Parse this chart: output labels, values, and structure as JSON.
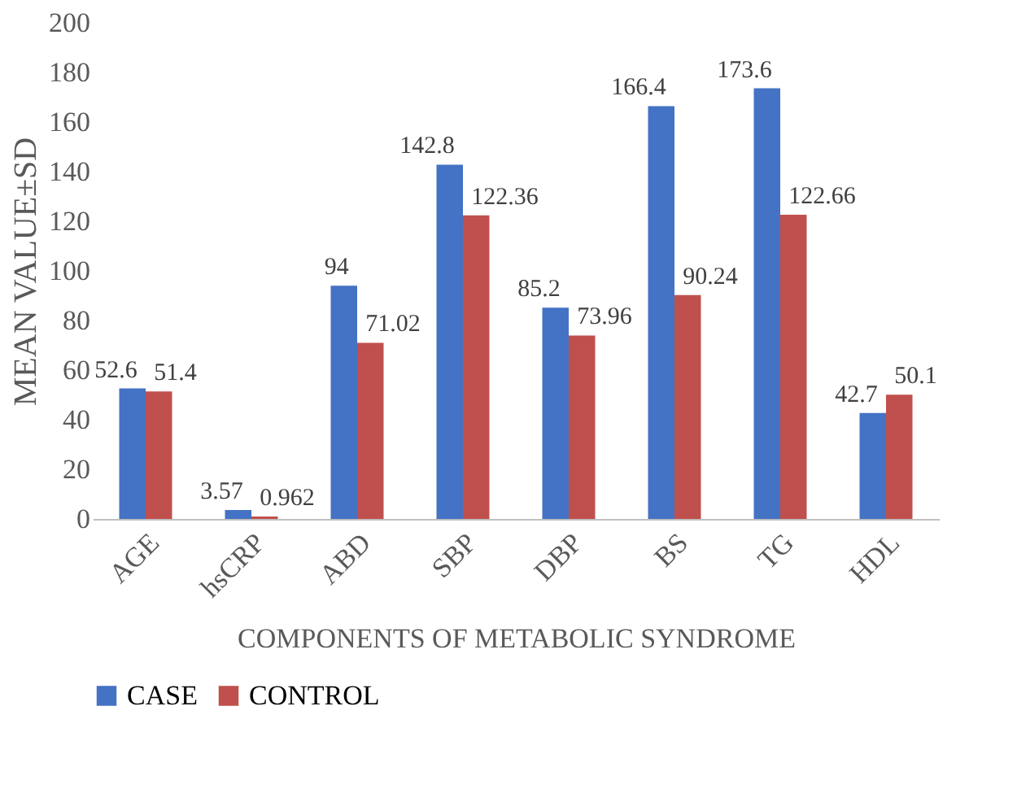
{
  "chart_data": {
    "type": "bar",
    "xlabel": "COMPONENTS OF METABOLIC SYNDROME",
    "ylabel": "MEAN VALUE±SD",
    "categories": [
      "AGE",
      "hsCRP",
      "ABD",
      "SBP",
      "DBP",
      "BS",
      "TG",
      "HDL"
    ],
    "series": [
      {
        "name": "CASE",
        "color": "#4472c4",
        "values": [
          52.6,
          3.57,
          94,
          142.8,
          85.2,
          166.4,
          173.6,
          42.7
        ]
      },
      {
        "name": "CONTROL",
        "color": "#c0504d",
        "values": [
          51.4,
          0.962,
          71.02,
          122.36,
          73.96,
          90.24,
          122.66,
          50.1
        ]
      }
    ],
    "ylim": [
      0,
      200
    ],
    "yticks": [
      0,
      20,
      40,
      60,
      80,
      100,
      120,
      140,
      160,
      180,
      200
    ],
    "grid": false,
    "legend": "bottom",
    "data_labels": true
  }
}
